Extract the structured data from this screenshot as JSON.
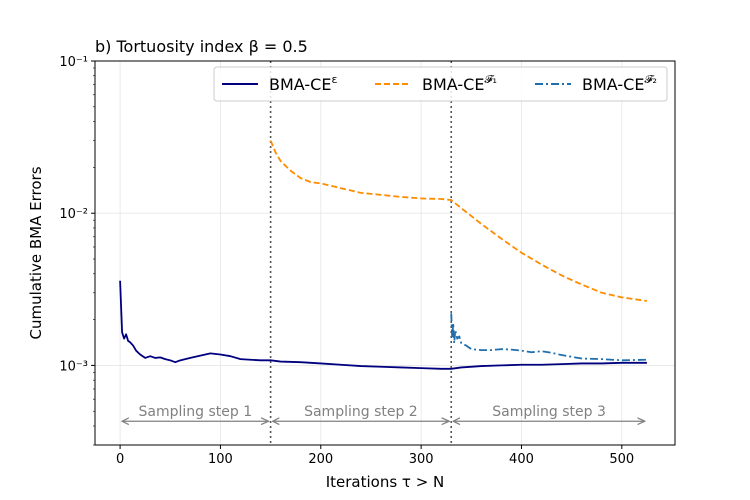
{
  "chart_data": {
    "type": "line",
    "title": "b) Tortuosity index β = 0.5",
    "xlabel": "Iterations τ > N",
    "ylabel": "Cumulative BMA Errors",
    "xlim": [
      -25,
      553
    ],
    "ylim": [
      0.0003,
      0.1
    ],
    "yscale": "log",
    "xticks": [
      0,
      100,
      200,
      300,
      400,
      500
    ],
    "xtick_labels": [
      "0",
      "100",
      "200",
      "300",
      "400",
      "500"
    ],
    "yticks": [
      0.001,
      0.01,
      0.1
    ],
    "ytick_labels": [
      "10⁻³",
      "10⁻²",
      "10⁻¹"
    ],
    "grid": true,
    "legend_position": "top-right",
    "vlines": [
      150,
      330
    ],
    "series": [
      {
        "name": "BMA-CEᵋ",
        "label_main": "BMA-CE",
        "label_sup": "ε",
        "color": "#00007f",
        "style": "solid",
        "x": [
          0,
          2,
          4,
          6,
          8,
          10,
          13,
          16,
          20,
          25,
          30,
          35,
          40,
          45,
          50,
          55,
          60,
          70,
          80,
          90,
          100,
          110,
          120,
          130,
          140,
          150,
          160,
          180,
          200,
          220,
          240,
          260,
          280,
          300,
          320,
          330,
          340,
          360,
          380,
          400,
          420,
          440,
          460,
          480,
          500,
          525
        ],
        "y": [
          0.0036,
          0.00165,
          0.0015,
          0.0016,
          0.00145,
          0.00142,
          0.00135,
          0.00125,
          0.00118,
          0.00112,
          0.00115,
          0.00112,
          0.00113,
          0.0011,
          0.00108,
          0.00105,
          0.00108,
          0.00112,
          0.00116,
          0.0012,
          0.00118,
          0.00115,
          0.0011,
          0.00109,
          0.00108,
          0.00108,
          0.00106,
          0.00105,
          0.00103,
          0.00101,
          0.00099,
          0.00098,
          0.00097,
          0.00096,
          0.00095,
          0.00095,
          0.00097,
          0.00099,
          0.001,
          0.00101,
          0.00101,
          0.00102,
          0.00103,
          0.00103,
          0.00104,
          0.00104
        ]
      },
      {
        "name": "BMA-CEᶠ¹",
        "label_main": "BMA-CE",
        "label_sup": "𝓕₁",
        "color": "#ff8c00",
        "style": "dashed",
        "x": [
          150,
          155,
          160,
          170,
          180,
          190,
          200,
          220,
          240,
          260,
          280,
          300,
          320,
          330,
          340,
          360,
          380,
          400,
          420,
          440,
          460,
          480,
          500,
          525
        ],
        "y": [
          0.03,
          0.025,
          0.022,
          0.019,
          0.017,
          0.016,
          0.0157,
          0.0146,
          0.0136,
          0.0132,
          0.0128,
          0.0125,
          0.0124,
          0.0122,
          0.0108,
          0.0085,
          0.0068,
          0.0055,
          0.0046,
          0.0039,
          0.0034,
          0.003,
          0.0028,
          0.00265
        ]
      },
      {
        "name": "BMA-CEᶠ²",
        "label_main": "BMA-CE",
        "label_sup": "𝓕₂",
        "color": "#1f6fae",
        "style": "dashdot",
        "x": [
          330,
          331,
          332,
          333,
          334,
          335,
          336,
          338,
          340,
          345,
          350,
          360,
          370,
          380,
          390,
          400,
          410,
          420,
          430,
          440,
          460,
          480,
          500,
          525
        ],
        "y": [
          0.0022,
          0.0015,
          0.0019,
          0.0014,
          0.0017,
          0.0016,
          0.0015,
          0.00155,
          0.0014,
          0.00135,
          0.00128,
          0.00126,
          0.00126,
          0.00128,
          0.00127,
          0.00125,
          0.00122,
          0.00124,
          0.00121,
          0.00117,
          0.00111,
          0.0011,
          0.00108,
          0.00109
        ]
      }
    ],
    "annotations": [
      {
        "text": "Sampling step 1",
        "x_start": 0,
        "x_end": 150
      },
      {
        "text": "Sampling step 2",
        "x_start": 150,
        "x_end": 330
      },
      {
        "text": "Sampling step 3",
        "x_start": 330,
        "x_end": 525
      }
    ],
    "annotation_y": 0.0005
  }
}
